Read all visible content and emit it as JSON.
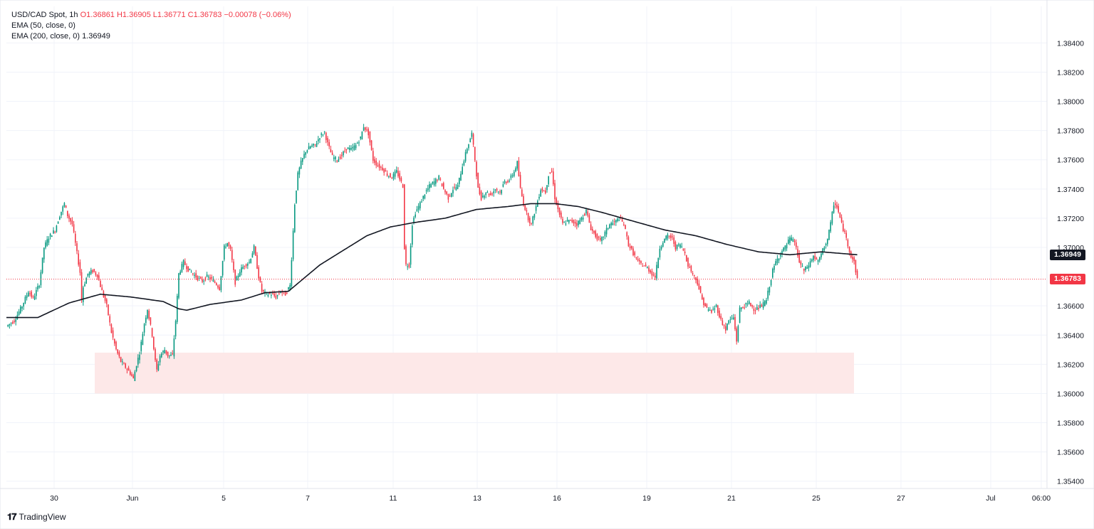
{
  "legend": {
    "symbol": "USD/CAD Spot, 1h",
    "ohlc": "O1.36861 H1.36905 L1.36771 C1.36783 −0.00078 (−0.06%)",
    "ema50": "EMA (50, close, 0)",
    "ema200_label": "EMA (200, close, 0)",
    "ema200_value": "1.36949"
  },
  "branding": {
    "logo": "TradingView"
  },
  "colors": {
    "up": "#089981",
    "down": "#f23645",
    "ema": "#131722",
    "zone": "#fde8e8"
  },
  "chart_data": {
    "type": "candlestick",
    "title": "USD/CAD Spot, 1h",
    "y_range": [
      1.3535,
      1.3865
    ],
    "y_ticks": [
      "1.38400",
      "1.38200",
      "1.38000",
      "1.37800",
      "1.37600",
      "1.37400",
      "1.37200",
      "1.37000",
      "1.36600",
      "1.36400",
      "1.36200",
      "1.36000",
      "1.35800",
      "1.35600",
      "1.35400"
    ],
    "x_ticks": [
      "30",
      "Jun",
      "5",
      "7",
      "11",
      "13",
      "16",
      "19",
      "21",
      "25",
      "27",
      "Jul",
      "06:00"
    ],
    "last_price": "1.36783",
    "ema_price": "1.36949",
    "last_price_value": 1.36783,
    "ema_price_value": 1.36949,
    "support_zone": {
      "low": 1.36,
      "high": 1.3628
    },
    "close_path": [
      [
        0,
        1.3646
      ],
      [
        5,
        1.365
      ],
      [
        10,
        1.366
      ],
      [
        14,
        1.367
      ],
      [
        17,
        1.3665
      ],
      [
        21,
        1.3675
      ],
      [
        24,
        1.37
      ],
      [
        27,
        1.3707
      ],
      [
        31,
        1.3712
      ],
      [
        34,
        1.3722
      ],
      [
        37,
        1.373
      ],
      [
        39,
        1.3722
      ],
      [
        42,
        1.3716
      ],
      [
        45,
        1.3696
      ],
      [
        47,
        1.3683
      ],
      [
        48,
        1.3664
      ],
      [
        49,
        1.3673
      ],
      [
        52,
        1.3682
      ],
      [
        55,
        1.3684
      ],
      [
        58,
        1.3681
      ],
      [
        61,
        1.367
      ],
      [
        64,
        1.366
      ],
      [
        67,
        1.3642
      ],
      [
        70,
        1.363
      ],
      [
        73,
        1.3622
      ],
      [
        76,
        1.3618
      ],
      [
        79,
        1.3614
      ],
      [
        81,
        1.361
      ],
      [
        83,
        1.362
      ],
      [
        85,
        1.3628
      ],
      [
        88,
        1.3648
      ],
      [
        90,
        1.3658
      ],
      [
        93,
        1.364
      ],
      [
        95,
        1.3622
      ],
      [
        96,
        1.3616
      ],
      [
        98,
        1.3626
      ],
      [
        101,
        1.363
      ],
      [
        103,
        1.3626
      ],
      [
        106,
        1.3626
      ],
      [
        108,
        1.365
      ],
      [
        110,
        1.3682
      ],
      [
        113,
        1.369
      ],
      [
        116,
        1.3685
      ],
      [
        119,
        1.3682
      ],
      [
        122,
        1.3679
      ],
      [
        125,
        1.3677
      ],
      [
        128,
        1.368
      ],
      [
        131,
        1.3678
      ],
      [
        134,
        1.3675
      ],
      [
        136,
        1.3672
      ],
      [
        139,
        1.37
      ],
      [
        141,
        1.3703
      ],
      [
        143,
        1.3698
      ],
      [
        146,
        1.3676
      ],
      [
        149,
        1.3684
      ],
      [
        152,
        1.3688
      ],
      [
        155,
        1.369
      ],
      [
        158,
        1.37
      ],
      [
        161,
        1.368
      ],
      [
        163,
        1.367
      ],
      [
        166,
        1.3668
      ],
      [
        169,
        1.3668
      ],
      [
        172,
        1.3666
      ],
      [
        175,
        1.367
      ],
      [
        178,
        1.3668
      ],
      [
        181,
        1.3674
      ],
      [
        184,
        1.373
      ],
      [
        186,
        1.375
      ],
      [
        188,
        1.3758
      ],
      [
        191,
        1.3766
      ],
      [
        194,
        1.3769
      ],
      [
        197,
        1.377
      ],
      [
        200,
        1.3776
      ],
      [
        203,
        1.3779
      ],
      [
        205,
        1.3771
      ],
      [
        208,
        1.3762
      ],
      [
        211,
        1.376
      ],
      [
        214,
        1.3763
      ],
      [
        217,
        1.3768
      ],
      [
        220,
        1.3767
      ],
      [
        223,
        1.377
      ],
      [
        226,
        1.3775
      ],
      [
        228,
        1.3783
      ],
      [
        231,
        1.3778
      ],
      [
        234,
        1.376
      ],
      [
        237,
        1.3756
      ],
      [
        240,
        1.3754
      ],
      [
        243,
        1.375
      ],
      [
        246,
        1.3748
      ],
      [
        249,
        1.3752
      ],
      [
        251,
        1.3747
      ],
      [
        253,
        1.3742
      ],
      [
        254,
        1.37
      ],
      [
        255,
        1.3688
      ],
      [
        257,
        1.3688
      ],
      [
        259,
        1.3716
      ],
      [
        261,
        1.3724
      ],
      [
        264,
        1.373
      ],
      [
        267,
        1.3737
      ],
      [
        270,
        1.3742
      ],
      [
        273,
        1.3745
      ],
      [
        276,
        1.3748
      ],
      [
        279,
        1.374
      ],
      [
        282,
        1.3734
      ],
      [
        285,
        1.374
      ],
      [
        288,
        1.3742
      ],
      [
        291,
        1.3756
      ],
      [
        294,
        1.3768
      ],
      [
        297,
        1.3778
      ],
      [
        299,
        1.376
      ],
      [
        301,
        1.374
      ],
      [
        303,
        1.3734
      ],
      [
        306,
        1.3738
      ],
      [
        309,
        1.3736
      ],
      [
        312,
        1.374
      ],
      [
        315,
        1.3738
      ],
      [
        318,
        1.3745
      ],
      [
        321,
        1.3746
      ],
      [
        324,
        1.3752
      ],
      [
        326,
        1.3758
      ],
      [
        328,
        1.374
      ],
      [
        330,
        1.373
      ],
      [
        333,
        1.372
      ],
      [
        335,
        1.3716
      ],
      [
        338,
        1.3728
      ],
      [
        341,
        1.374
      ],
      [
        344,
        1.3738
      ],
      [
        346,
        1.375
      ],
      [
        348,
        1.3752
      ],
      [
        350,
        1.3734
      ],
      [
        352,
        1.3726
      ],
      [
        355,
        1.3716
      ],
      [
        358,
        1.3718
      ],
      [
        361,
        1.3718
      ],
      [
        364,
        1.3716
      ],
      [
        367,
        1.372
      ],
      [
        370,
        1.3725
      ],
      [
        373,
        1.3713
      ],
      [
        376,
        1.3708
      ],
      [
        379,
        1.3704
      ],
      [
        382,
        1.371
      ],
      [
        385,
        1.3716
      ],
      [
        388,
        1.3717
      ],
      [
        391,
        1.372
      ],
      [
        394,
        1.3716
      ],
      [
        397,
        1.3702
      ],
      [
        400,
        1.3696
      ],
      [
        403,
        1.369
      ],
      [
        406,
        1.3688
      ],
      [
        409,
        1.3686
      ],
      [
        412,
        1.3682
      ],
      [
        414,
        1.368
      ],
      [
        417,
        1.37
      ],
      [
        419,
        1.3704
      ],
      [
        422,
        1.3708
      ],
      [
        425,
        1.3706
      ],
      [
        427,
        1.37
      ],
      [
        430,
        1.3702
      ],
      [
        433,
        1.3696
      ],
      [
        435,
        1.3688
      ],
      [
        438,
        1.3682
      ],
      [
        441,
        1.3676
      ],
      [
        444,
        1.3664
      ],
      [
        447,
        1.3658
      ],
      [
        450,
        1.3656
      ],
      [
        453,
        1.366
      ],
      [
        456,
        1.365
      ],
      [
        459,
        1.3644
      ],
      [
        461,
        1.365
      ],
      [
        464,
        1.3652
      ],
      [
        466,
        1.3636
      ],
      [
        468,
        1.3658
      ],
      [
        471,
        1.366
      ],
      [
        474,
        1.3662
      ],
      [
        477,
        1.3658
      ],
      [
        479,
        1.3658
      ],
      [
        482,
        1.366
      ],
      [
        485,
        1.3664
      ],
      [
        487,
        1.3674
      ],
      [
        489,
        1.3684
      ],
      [
        491,
        1.369
      ],
      [
        494,
        1.3696
      ],
      [
        497,
        1.37
      ],
      [
        500,
        1.3706
      ],
      [
        503,
        1.3704
      ],
      [
        506,
        1.369
      ],
      [
        509,
        1.3684
      ],
      [
        512,
        1.3688
      ],
      [
        515,
        1.3694
      ],
      [
        518,
        1.369
      ],
      [
        521,
        1.3698
      ],
      [
        524,
        1.3706
      ],
      [
        526,
        1.3716
      ],
      [
        528,
        1.373
      ],
      [
        530,
        1.3728
      ],
      [
        533,
        1.3716
      ],
      [
        536,
        1.3706
      ],
      [
        539,
        1.3694
      ],
      [
        541,
        1.369
      ],
      [
        543,
        1.3678
      ]
    ],
    "ema200_path": [
      [
        0,
        1.3652
      ],
      [
        20,
        1.3652
      ],
      [
        40,
        1.3662
      ],
      [
        60,
        1.3668
      ],
      [
        80,
        1.3666
      ],
      [
        100,
        1.3663
      ],
      [
        110,
        1.3658
      ],
      [
        115,
        1.3657
      ],
      [
        130,
        1.3661
      ],
      [
        150,
        1.3664
      ],
      [
        165,
        1.3669
      ],
      [
        180,
        1.367
      ],
      [
        200,
        1.3688
      ],
      [
        215,
        1.3698
      ],
      [
        230,
        1.3708
      ],
      [
        245,
        1.3714
      ],
      [
        260,
        1.3717
      ],
      [
        280,
        1.372
      ],
      [
        300,
        1.3726
      ],
      [
        320,
        1.3728
      ],
      [
        335,
        1.373
      ],
      [
        350,
        1.373
      ],
      [
        365,
        1.3728
      ],
      [
        380,
        1.3724
      ],
      [
        400,
        1.3718
      ],
      [
        420,
        1.3712
      ],
      [
        440,
        1.3708
      ],
      [
        460,
        1.3702
      ],
      [
        480,
        1.3697
      ],
      [
        500,
        1.3695
      ],
      [
        520,
        1.3697
      ],
      [
        543,
        1.3695
      ]
    ]
  }
}
